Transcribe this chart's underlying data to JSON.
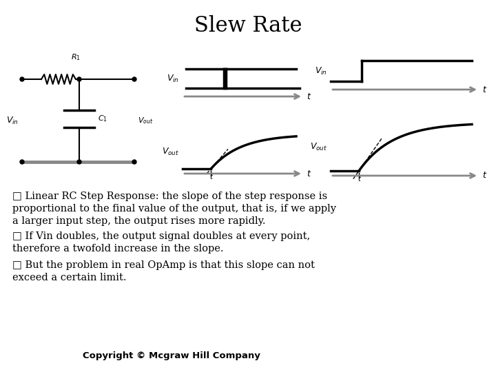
{
  "title": "Slew Rate",
  "title_fontsize": 22,
  "background_color": "#ffffff",
  "text_color": "#000000",
  "text_fontsize": 10.5,
  "copyright_fontsize": 9.5,
  "copyright": "Copyright © Mcgraw Hill Company",
  "bullet_char": "□",
  "b1_line1": "□ Linear RC Step Response: the slope of the step response is",
  "b1_line2": "proportional to the final value of the output, that is, if we apply",
  "b1_line3": "a larger input step, the output rises more rapidly.",
  "b2_line1": "□ If Vin doubles, the output signal doubles at every point,",
  "b2_line2": "therefore a twofold increase in the slope.",
  "b3_line1": "□ But the problem in real OpAmp is that this slope can not",
  "b3_line2": "exceed a certain limit."
}
